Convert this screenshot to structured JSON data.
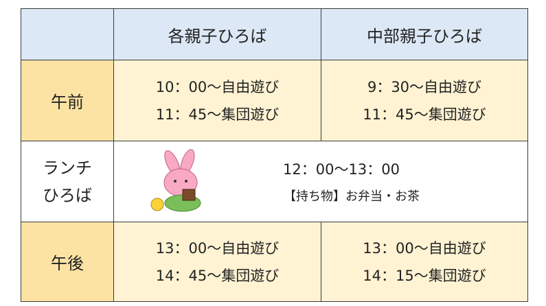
{
  "table": {
    "columns": [
      "各親子ひろば",
      "中部親子ひろば"
    ],
    "morning": {
      "label": "午前",
      "cells": [
        [
          "10：00～自由遊び",
          "11：45～集団遊び"
        ],
        [
          "9：30～自由遊び",
          "11：45～集団遊び"
        ]
      ]
    },
    "lunch": {
      "label": [
        "ランチ",
        "ひろば"
      ],
      "time": "12：00～13：00",
      "note": "【持ち物】お弁当・お茶"
    },
    "afternoon": {
      "label": "午後",
      "cells": [
        [
          "13：00～自由遊び",
          "14：45～集団遊び"
        ],
        [
          "13：00～自由遊び",
          "14：15～集団遊び"
        ]
      ]
    }
  }
}
